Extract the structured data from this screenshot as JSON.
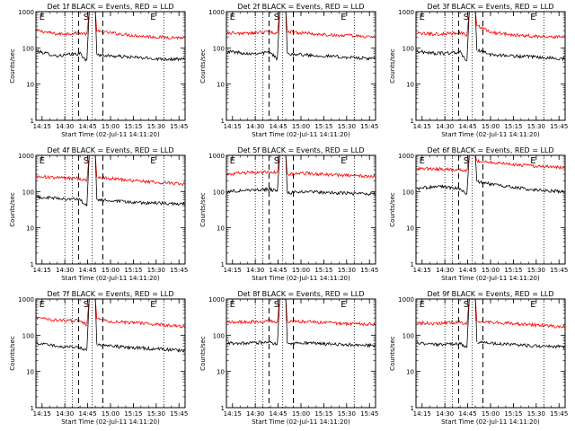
{
  "figure": {
    "time_ticks": [
      "14:15",
      "14:30",
      "14:45",
      "15:00",
      "15:15",
      "15:30",
      "15:45"
    ],
    "y_ticks": [
      "1",
      "10",
      "100",
      "1000"
    ],
    "ylabel": "Counts/sec",
    "xlabel": "Start Time (02-Jul-11 14:11:20)",
    "markers": [
      "E",
      "S",
      "E"
    ],
    "colors": {
      "events": "#000000",
      "lld": "#ff0000",
      "axes": "#000000",
      "background": "#ffffff"
    }
  },
  "chart_data": [
    {
      "type": "line",
      "title": "Det 1f BLACK = Events, RED = LLD",
      "xlabel": "Start Time (02-Jul-11 14:11:20)",
      "ylabel": "Counts/sec",
      "y_scale": "log",
      "ylim": [
        1,
        1000
      ],
      "xlim": [
        "14:11",
        "15:49"
      ],
      "x": [
        "14:12",
        "14:25",
        "14:40",
        "14:44",
        "14:52",
        "15:00",
        "15:15",
        "15:30",
        "15:48"
      ],
      "series": [
        {
          "name": "LLD",
          "color": "#ff0000",
          "values": [
            300,
            240,
            260,
            240,
            280,
            260,
            220,
            200,
            190
          ]
        },
        {
          "name": "Events",
          "color": "#000000",
          "values": [
            80,
            60,
            70,
            45,
            65,
            60,
            55,
            50,
            48
          ]
        }
      ]
    },
    {
      "type": "line",
      "title": "Det 2f BLACK = Events, RED = LLD",
      "xlabel": "Start Time (02-Jul-11 14:11:20)",
      "ylabel": "Counts/sec",
      "y_scale": "log",
      "ylim": [
        1,
        1000
      ],
      "xlim": [
        "14:11",
        "15:49"
      ],
      "x": [
        "14:12",
        "14:25",
        "14:40",
        "14:44",
        "14:52",
        "15:00",
        "15:15",
        "15:30",
        "15:48"
      ],
      "series": [
        {
          "name": "LLD",
          "color": "#ff0000",
          "values": [
            260,
            250,
            280,
            250,
            280,
            260,
            230,
            220,
            200
          ]
        },
        {
          "name": "Events",
          "color": "#000000",
          "values": [
            80,
            70,
            75,
            50,
            70,
            65,
            60,
            55,
            50
          ]
        }
      ]
    },
    {
      "type": "line",
      "title": "Det 3f BLACK = Events, RED = LLD",
      "xlabel": "Start Time (02-Jul-11 14:11:20)",
      "ylabel": "Counts/sec",
      "y_scale": "log",
      "ylim": [
        1,
        1000
      ],
      "xlim": [
        "14:11",
        "15:49"
      ],
      "x": [
        "14:12",
        "14:25",
        "14:40",
        "14:44",
        "14:52",
        "15:00",
        "15:15",
        "15:30",
        "15:48"
      ],
      "series": [
        {
          "name": "LLD",
          "color": "#ff0000",
          "values": [
            250,
            240,
            260,
            230,
            400,
            270,
            230,
            210,
            200
          ]
        },
        {
          "name": "Events",
          "color": "#000000",
          "values": [
            80,
            70,
            75,
            45,
            85,
            65,
            60,
            55,
            50
          ]
        }
      ]
    },
    {
      "type": "line",
      "title": "Det 4f BLACK = Events, RED = LLD",
      "xlabel": "Start Time (02-Jul-11 14:11:20)",
      "ylabel": "Counts/sec",
      "y_scale": "log",
      "ylim": [
        1,
        1000
      ],
      "xlim": [
        "14:11",
        "15:49"
      ],
      "x": [
        "14:12",
        "14:25",
        "14:40",
        "14:44",
        "14:52",
        "15:00",
        "15:15",
        "15:30",
        "15:48"
      ],
      "series": [
        {
          "name": "LLD",
          "color": "#ff0000",
          "values": [
            260,
            240,
            230,
            200,
            250,
            230,
            200,
            180,
            160
          ]
        },
        {
          "name": "Events",
          "color": "#000000",
          "values": [
            70,
            65,
            60,
            40,
            60,
            55,
            50,
            48,
            45
          ]
        }
      ]
    },
    {
      "type": "line",
      "title": "Det 5f BLACK = Events, RED = LLD",
      "xlabel": "Start Time (02-Jul-11 14:11:20)",
      "ylabel": "Counts/sec",
      "y_scale": "log",
      "ylim": [
        1,
        1000
      ],
      "xlim": [
        "14:11",
        "15:49"
      ],
      "x": [
        "14:12",
        "14:25",
        "14:40",
        "14:44",
        "14:52",
        "15:00",
        "15:15",
        "15:30",
        "15:48"
      ],
      "series": [
        {
          "name": "LLD",
          "color": "#ff0000",
          "values": [
            300,
            330,
            350,
            330,
            300,
            320,
            300,
            280,
            260
          ]
        },
        {
          "name": "Events",
          "color": "#000000",
          "values": [
            100,
            110,
            115,
            100,
            90,
            100,
            95,
            90,
            85
          ]
        }
      ]
    },
    {
      "type": "line",
      "title": "Det 6f BLACK = Events, RED = LLD",
      "xlabel": "Start Time (02-Jul-11 14:11:20)",
      "ylabel": "Counts/sec",
      "y_scale": "log",
      "ylim": [
        1,
        1000
      ],
      "xlim": [
        "14:11",
        "15:49"
      ],
      "x": [
        "14:12",
        "14:25",
        "14:40",
        "14:44",
        "14:52",
        "15:00",
        "15:15",
        "15:30",
        "15:48"
      ],
      "series": [
        {
          "name": "LLD",
          "color": "#ff0000",
          "values": [
            430,
            420,
            410,
            380,
            700,
            640,
            560,
            500,
            450
          ]
        },
        {
          "name": "Events",
          "color": "#000000",
          "values": [
            120,
            140,
            120,
            90,
            190,
            160,
            130,
            110,
            100
          ]
        }
      ]
    },
    {
      "type": "line",
      "title": "Det 7f BLACK = Events, RED = LLD",
      "xlabel": "Start Time (02-Jul-11 14:11:20)",
      "ylabel": "Counts/sec",
      "y_scale": "log",
      "ylim": [
        1,
        1000
      ],
      "xlim": [
        "14:11",
        "15:49"
      ],
      "x": [
        "14:12",
        "14:25",
        "14:40",
        "14:44",
        "14:52",
        "15:00",
        "15:15",
        "15:30",
        "15:48"
      ],
      "series": [
        {
          "name": "LLD",
          "color": "#ff0000",
          "values": [
            300,
            260,
            250,
            200,
            280,
            240,
            220,
            200,
            170
          ]
        },
        {
          "name": "Events",
          "color": "#000000",
          "values": [
            60,
            50,
            45,
            40,
            55,
            50,
            45,
            42,
            38
          ]
        }
      ]
    },
    {
      "type": "line",
      "title": "Det 8f BLACK = Events, RED = LLD",
      "xlabel": "Start Time (02-Jul-11 14:11:20)",
      "ylabel": "Counts/sec",
      "y_scale": "log",
      "ylim": [
        1,
        1000
      ],
      "xlim": [
        "14:11",
        "15:49"
      ],
      "x": [
        "14:12",
        "14:25",
        "14:40",
        "14:44",
        "14:52",
        "15:00",
        "15:15",
        "15:30",
        "15:48"
      ],
      "series": [
        {
          "name": "LLD",
          "color": "#ff0000",
          "values": [
            230,
            230,
            250,
            230,
            230,
            240,
            220,
            210,
            200
          ]
        },
        {
          "name": "Events",
          "color": "#000000",
          "values": [
            60,
            60,
            65,
            55,
            60,
            62,
            58,
            55,
            52
          ]
        }
      ]
    },
    {
      "type": "line",
      "title": "Det 9f BLACK = Events, RED = LLD",
      "xlabel": "Start Time (02-Jul-11 14:11:20)",
      "ylabel": "Counts/sec",
      "y_scale": "log",
      "ylim": [
        1,
        1000
      ],
      "xlim": [
        "14:11",
        "15:49"
      ],
      "x": [
        "14:12",
        "14:25",
        "14:40",
        "14:44",
        "14:52",
        "15:00",
        "15:15",
        "15:30",
        "15:48"
      ],
      "series": [
        {
          "name": "LLD",
          "color": "#ff0000",
          "values": [
            220,
            210,
            230,
            200,
            240,
            230,
            210,
            190,
            170
          ]
        },
        {
          "name": "Events",
          "color": "#000000",
          "values": [
            60,
            55,
            60,
            45,
            65,
            60,
            55,
            50,
            48
          ]
        }
      ]
    }
  ]
}
